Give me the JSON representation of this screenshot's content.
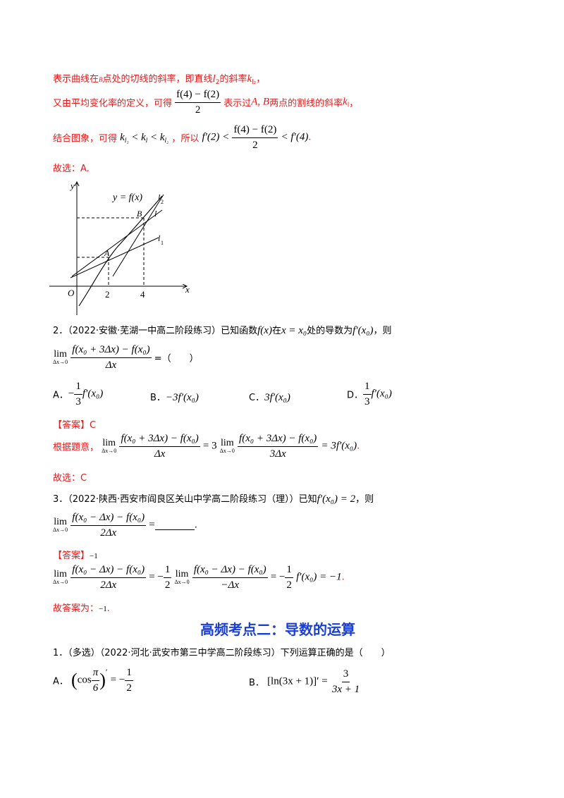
{
  "line1": {
    "prefix": "表示曲线在",
    "b": "B",
    "mid": "点处的切线的斜率，即直线",
    "l2": "l",
    "l2sub": "2",
    "suffix": "的斜率",
    "k": "k",
    "ksub": "l₂",
    "end": "，"
  },
  "line2": {
    "prefix": "又由平均变化率的定义，可得",
    "num": "f(4) − f(2)",
    "den": "2",
    "mid": "表示过",
    "ab": "A, B",
    "suffix": "两点的割线的斜率",
    "k": "k",
    "ksub": "l",
    "end": "，"
  },
  "line3": {
    "prefix": "结合图象，可得",
    "ineq": "k",
    "ineq_sub1": "l₁",
    "lt1": " < k",
    "ineq_sub2": "l",
    "lt2": " < k",
    "ineq_sub3": "l₂",
    "mid": "，所以",
    "lhs": "f′(2) <",
    "num": "f(4) − f(2)",
    "den": "2",
    "rhs": "< f′(4)",
    "end": "."
  },
  "answer1": "故选：A.",
  "graph": {
    "y_label": "y",
    "x_label": "x",
    "origin": "O",
    "tick2": "2",
    "tick4": "4",
    "curve_label": "y = f(x)",
    "l2_label": "l",
    "l2_sub": "2",
    "l_label": "l",
    "l1_label": "l",
    "l1_sub": "1",
    "pt_a": "A",
    "pt_b": "B"
  },
  "q2": {
    "number": "2．",
    "source": "（2022·安徽·芜湖一中高二阶段练习）已知函数",
    "fx": "f(x)",
    "in": "在",
    "cond": "x = x₀",
    "deriv_text": "处的导数为",
    "fprime": "f′(x₀)",
    "then": "，则",
    "lim_top": "lim",
    "lim_bottom": "Δx→0",
    "num": "f(x₀ + 3Δx) − f(x₀)",
    "den": "Δx",
    "blank": "=（　　）",
    "options": [
      {
        "label": "A．",
        "coef_num": "1",
        "coef_den": "3",
        "sign": "−",
        "expr": "f′(x₀)"
      },
      {
        "label": "B．",
        "expr": "−3f′(x₀)"
      },
      {
        "label": "C．",
        "expr": "3f′(x₀)"
      },
      {
        "label": "D．",
        "coef_num": "1",
        "coef_den": "3",
        "expr": "f′(x₀)"
      }
    ],
    "answer_tag": "【答案】C",
    "solution_prefix": "根据题意，",
    "sol_num1": "f(x₀ + 3Δx) − f(x₀)",
    "sol_den1": "Δx",
    "sol_eq1": "= 3",
    "sol_num2": "f(x₀ + 3Δx) − f(x₀)",
    "sol_den2": "3Δx",
    "sol_eq2": "= 3f′(x₀)",
    "sol_end": ".",
    "final": "故选：C"
  },
  "q3": {
    "number": "3．",
    "source": "（2022·陕西·西安市阎良区关山中学高二阶段练习（理））已知",
    "given": "f′(x₀) = 2",
    "then": "，则",
    "lim_top": "lim",
    "lim_bottom": "Δx→0",
    "num": "f(x₀ − Δx) − f(x₀)",
    "den": "2Δx",
    "blank": "=",
    "blank_end": ".",
    "answer_tag": "【答案】",
    "answer_val": "−1",
    "sol_num1": "f(x₀ − Δx) − f(x₀)",
    "sol_den1": "2Δx",
    "sol_eq1": "= −",
    "sol_c_num": "1",
    "sol_c_den": "2",
    "sol_num2": "f(x₀ − Δx) − f(x₀)",
    "sol_den2": "−Δx",
    "sol_eq2": "= −",
    "sol_c2_num": "1",
    "sol_c2_den": "2",
    "sol_tail": "f′(x₀) = −1",
    "sol_end": ".",
    "final_prefix": "故答案为：",
    "final_val": "−1",
    "final_end": "."
  },
  "section_title": "高频考点二：导数的运算",
  "q1b": {
    "number": "1．",
    "source": "（多选）（2022·河北·武安市第三中学高二阶段练习）下列运算正确的是（　　）",
    "optA_label": "A．",
    "optA_cos": "cos",
    "optA_pi": "π",
    "optA_six": "6",
    "optA_rhs": "= −",
    "optA_num": "1",
    "optA_den": "2",
    "optB_label": "B．",
    "optB_lhs": "[ln(3x + 1)]′ =",
    "optB_num": "3",
    "optB_den": "3x + 1"
  }
}
